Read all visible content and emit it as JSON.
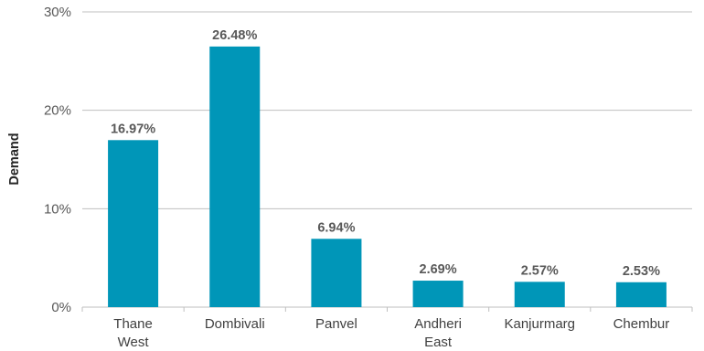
{
  "chart_data": {
    "type": "bar",
    "categories": [
      [
        "Thane",
        "West"
      ],
      [
        "Dombivali"
      ],
      [
        "Panvel"
      ],
      [
        "Andheri",
        "East"
      ],
      [
        "Kanjurmarg"
      ],
      [
        "Chembur"
      ]
    ],
    "values": [
      16.97,
      26.48,
      6.94,
      2.69,
      2.57,
      2.53
    ],
    "data_labels": [
      "16.97%",
      "26.48%",
      "6.94%",
      "2.69%",
      "2.57%",
      "2.53%"
    ],
    "title": "",
    "xlabel": "",
    "ylabel": "Demand",
    "ylim": [
      0,
      30
    ],
    "yticks": [
      0,
      10,
      20,
      30
    ],
    "ytick_labels": [
      "0%",
      "10%",
      "20%",
      "30%"
    ],
    "grid": true,
    "bar_color": "#0096b8",
    "grid_color": "#bfbfbf"
  }
}
